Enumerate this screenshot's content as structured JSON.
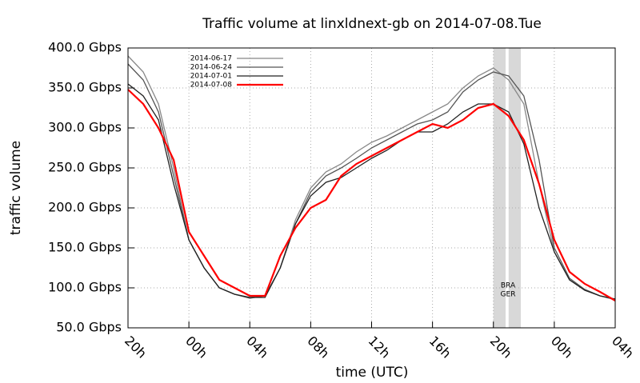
{
  "chart_data": {
    "type": "line",
    "title": "Traffic volume at linxldnext-gb on 2014-07-08.Tue",
    "x_label": "time (UTC)",
    "y_label": "traffic volume",
    "x": [
      0,
      1,
      2,
      3,
      4,
      5,
      6,
      7,
      8,
      9,
      10,
      11,
      12,
      13,
      14,
      15,
      16,
      17,
      18,
      19,
      20,
      21,
      22,
      23,
      24,
      25,
      26,
      27,
      28,
      29,
      30,
      31,
      32
    ],
    "series": [
      {
        "name": "2014-06-17",
        "color": "#888888",
        "values": [
          390,
          370,
          330,
          250,
          160,
          125,
          100,
          92,
          88,
          90,
          125,
          185,
          225,
          245,
          255,
          270,
          282,
          290,
          300,
          310,
          320,
          330,
          350,
          365,
          375,
          360,
          330,
          230,
          145,
          110,
          98,
          90,
          85
        ]
      },
      {
        "name": "2014-06-24",
        "color": "#555555",
        "values": [
          380,
          360,
          320,
          240,
          160,
          125,
          100,
          92,
          87,
          90,
          125,
          180,
          220,
          240,
          250,
          262,
          275,
          285,
          295,
          305,
          310,
          320,
          345,
          360,
          370,
          365,
          340,
          260,
          150,
          112,
          98,
          90,
          86
        ]
      },
      {
        "name": "2014-07-01",
        "color": "#222222",
        "values": [
          355,
          340,
          310,
          230,
          160,
          125,
          100,
          92,
          88,
          88,
          125,
          180,
          215,
          232,
          238,
          250,
          262,
          272,
          285,
          295,
          295,
          305,
          320,
          330,
          330,
          320,
          280,
          200,
          145,
          110,
          97,
          90,
          86
        ]
      },
      {
        "name": "2014-07-08",
        "color": "#ff0000",
        "values": [
          348,
          330,
          300,
          260,
          170,
          140,
          110,
          100,
          90,
          90,
          140,
          175,
          200,
          210,
          240,
          255,
          265,
          275,
          285,
          295,
          305,
          300,
          310,
          325,
          330,
          315,
          285,
          230,
          160,
          120,
          105,
          95,
          84
        ]
      }
    ],
    "highlight_bands": [
      [
        24,
        24.8
      ],
      [
        25,
        25.8
      ]
    ],
    "annotations": [
      "BRA",
      "GER"
    ],
    "xlim": [
      0,
      32
    ],
    "xticks": [
      {
        "value": 0,
        "label": "20h"
      },
      {
        "value": 4,
        "label": "00h"
      },
      {
        "value": 8,
        "label": "04h"
      },
      {
        "value": 12,
        "label": "08h"
      },
      {
        "value": 16,
        "label": "12h"
      },
      {
        "value": 20,
        "label": "16h"
      },
      {
        "value": 24,
        "label": "20h"
      },
      {
        "value": 28,
        "label": "00h"
      },
      {
        "value": 32,
        "label": "04h"
      }
    ],
    "ylim": [
      50,
      400
    ],
    "yticks": [
      {
        "value": 50,
        "label": "50.0 Gbps"
      },
      {
        "value": 100,
        "label": "100.0 Gbps"
      },
      {
        "value": 150,
        "label": "150.0 Gbps"
      },
      {
        "value": 200,
        "label": "200.0 Gbps"
      },
      {
        "value": 250,
        "label": "250.0 Gbps"
      },
      {
        "value": 300,
        "label": "300.0 Gbps"
      },
      {
        "value": 350,
        "label": "350.0 Gbps"
      },
      {
        "value": 400,
        "label": "400.0 Gbps"
      }
    ],
    "grid": true
  }
}
